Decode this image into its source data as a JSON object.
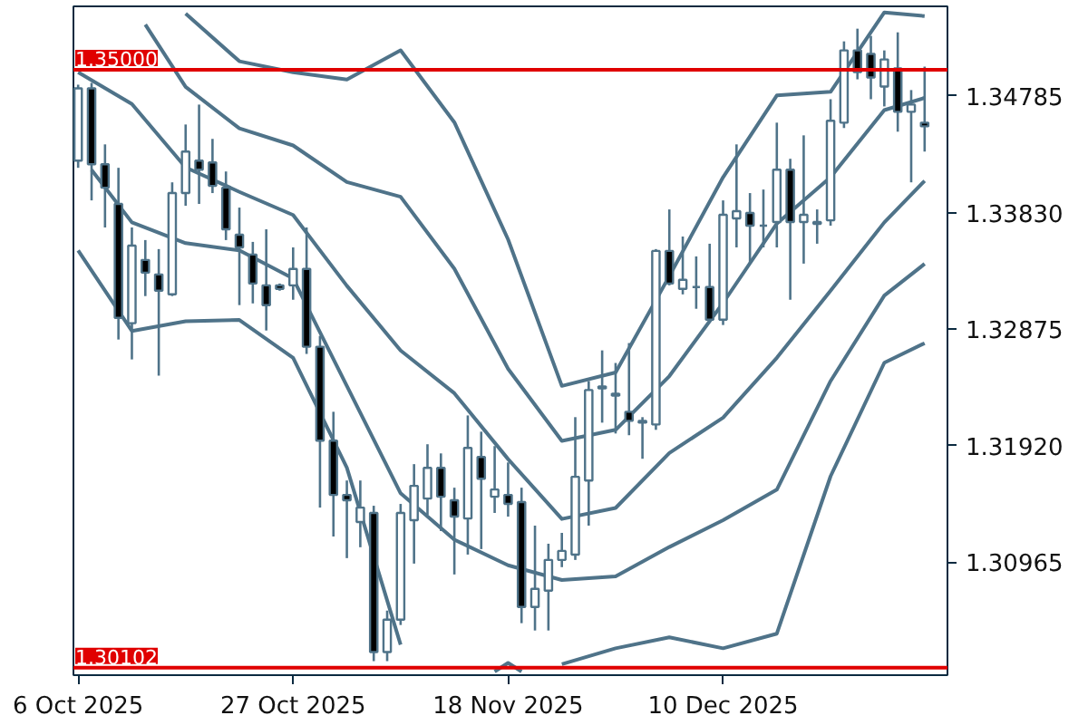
{
  "chart_data": {
    "type": "candlestick",
    "categories": [
      "6 Oct 2025",
      null,
      null,
      null,
      null,
      null,
      null,
      null,
      null,
      null,
      null,
      null,
      null,
      null,
      null,
      null,
      "27 Oct 2025",
      null,
      null,
      null,
      null,
      null,
      null,
      null,
      null,
      null,
      null,
      null,
      null,
      null,
      null,
      null,
      "18 Nov 2025",
      null,
      null,
      null,
      null,
      null,
      null,
      null,
      null,
      null,
      null,
      null,
      null,
      null,
      null,
      null,
      "10 Dec 2025",
      null,
      null,
      null,
      null,
      null,
      null,
      null,
      null,
      null,
      null,
      null,
      null,
      null,
      null,
      null
    ],
    "color": "#4f7389",
    "ohlc": [
      [
        1.34256,
        1.34878,
        1.34197,
        1.34848
      ],
      [
        1.34848,
        1.34893,
        1.3393,
        1.34226
      ],
      [
        1.34226,
        1.34389,
        1.33708,
        1.34034
      ],
      [
        1.33901,
        1.34197,
        1.3279,
        1.32968
      ],
      [
        1.32924,
        1.33708,
        1.32627,
        1.3356
      ],
      [
        1.33442,
        1.33605,
        1.33146,
        1.33338
      ],
      [
        1.33323,
        1.33531,
        1.32494,
        1.3319
      ],
      [
        1.3316,
        1.34078,
        1.33146,
        1.3399
      ],
      [
        1.3399,
        1.34552,
        1.33886,
        1.3433
      ],
      [
        1.34256,
        1.34715,
        1.33901,
        1.34182
      ],
      [
        1.34241,
        1.34434,
        1.3399,
        1.34049
      ],
      [
        1.34034,
        1.34167,
        1.33605,
        1.33693
      ],
      [
        1.33649,
        1.33871,
        1.33072,
        1.33545
      ],
      [
        1.33486,
        1.3359,
        1.33086,
        1.33249
      ],
      [
        1.33234,
        1.33693,
        1.32864,
        1.33072
      ],
      [
        1.33234,
        1.33249,
        1.3319,
        1.33205
      ],
      [
        1.33234,
        1.33545,
        1.33116,
        1.33368
      ],
      [
        1.33368,
        1.33708,
        1.32672,
        1.32731
      ],
      [
        1.32731,
        1.3282,
        1.31413,
        1.31961
      ],
      [
        1.31961,
        1.32198,
        1.31176,
        1.31517
      ],
      [
        1.31517,
        1.31635,
        1.30999,
        1.31473
      ],
      [
        1.31295,
        1.31635,
        1.31088,
        1.31413
      ],
      [
        1.31369,
        1.31428,
        1.30155,
        1.30229
      ],
      [
        1.30229,
        1.30569,
        1.30155,
        1.30495
      ],
      [
        1.30495,
        1.31443,
        1.30451,
        1.31369
      ],
      [
        1.3131,
        1.31769,
        1.30954,
        1.31591
      ],
      [
        1.31487,
        1.31932,
        1.31354,
        1.31739
      ],
      [
        1.31739,
        1.31857,
        1.31221,
        1.31502
      ],
      [
        1.31473,
        1.31576,
        1.30865,
        1.31339
      ],
      [
        1.31324,
        1.32168,
        1.31028,
        1.31902
      ],
      [
        1.31828,
        1.32035,
        1.31073,
        1.3165
      ],
      [
        1.31502,
        1.31917,
        1.31369,
        1.31561
      ],
      [
        1.31517,
        1.31783,
        1.31339,
        1.31443
      ],
      [
        1.31458,
        1.31576,
        1.30466,
        1.30599
      ],
      [
        1.30599,
        1.31265,
        1.30406,
        1.30747
      ],
      [
        1.30732,
        1.31117,
        1.30406,
        1.30984
      ],
      [
        1.30984,
        1.31206,
        1.30925,
        1.31058
      ],
      [
        1.31028,
        1.32154,
        1.30984,
        1.31665
      ],
      [
        1.31635,
        1.3245,
        1.31265,
        1.32376
      ],
      [
        1.3239,
        1.32701,
        1.32109,
        1.32405
      ],
      [
        1.32346,
        1.32598,
        1.3202,
        1.32331
      ],
      [
        1.32198,
        1.32761,
        1.32006,
        1.32124
      ],
      [
        1.32109,
        1.32154,
        1.31813,
        1.32124
      ],
      [
        1.32094,
        1.33531,
        1.3205,
        1.33516
      ],
      [
        1.33516,
        1.33856,
        1.33234,
        1.33249
      ],
      [
        1.33205,
        1.33634,
        1.3316,
        1.33279
      ],
      [
        1.3322,
        1.33471,
        1.33042,
        1.3322
      ],
      [
        1.3322,
        1.33575,
        1.32938,
        1.32953
      ],
      [
        1.32953,
        1.3393,
        1.32909,
        1.33812
      ],
      [
        1.33782,
        1.34389,
        1.33545,
        1.33842
      ],
      [
        1.33827,
        1.3399,
        1.33412,
        1.33723
      ],
      [
        1.33723,
        1.34019,
        1.33545,
        1.33723
      ],
      [
        1.33753,
        1.34567,
        1.33545,
        1.34182
      ],
      [
        1.34182,
        1.34271,
        1.33116,
        1.33753
      ],
      [
        1.33753,
        1.34463,
        1.33412,
        1.33812
      ],
      [
        1.33738,
        1.33856,
        1.33575,
        1.33753
      ],
      [
        1.33767,
        1.34759,
        1.33723,
        1.34582
      ],
      [
        1.34567,
        1.35233,
        1.34523,
        1.35159
      ],
      [
        1.35159,
        1.35337,
        1.34922,
        1.34982
      ],
      [
        1.3513,
        1.35278,
        1.34759,
        1.34937
      ],
      [
        1.34863,
        1.35159,
        1.347,
        1.35085
      ],
      [
        1.35011,
        1.35307,
        1.34493,
        1.34656
      ],
      [
        1.34656,
        1.34834,
        1.34078,
        1.34715
      ],
      [
        1.34567,
        1.35026,
        1.3433,
        1.34537
      ]
    ],
    "series": [
      {
        "type": "line",
        "color": "#4f7389",
        "values": [
          null,
          null,
          null,
          null,
          null,
          null,
          null,
          null,
          1.3546,
          null,
          null,
          null,
          1.3507,
          null,
          null,
          null,
          1.3498,
          null,
          null,
          null,
          1.3492,
          null,
          null,
          null,
          1.3516,
          null,
          null,
          null,
          1.3457,
          null,
          null,
          null,
          1.3361,
          null,
          null,
          null,
          1.3241,
          null,
          null,
          null,
          1.3252,
          null,
          null,
          null,
          1.3331,
          null,
          null,
          null,
          1.3412,
          null,
          null,
          null,
          1.3479,
          null,
          null,
          null,
          1.3482,
          null,
          null,
          null,
          1.3547,
          null,
          null,
          1.3544
        ]
      },
      {
        "type": "line",
        "color": "#4f7389",
        "values": [
          null,
          null,
          null,
          null,
          null,
          1.3537,
          null,
          null,
          1.3486,
          null,
          null,
          null,
          1.3452,
          null,
          null,
          null,
          1.3438,
          null,
          null,
          null,
          1.3408,
          null,
          null,
          null,
          1.3396,
          null,
          null,
          null,
          1.3337,
          null,
          null,
          null,
          1.3255,
          null,
          null,
          null,
          1.3196,
          null,
          null,
          null,
          1.3205,
          null,
          null,
          null,
          1.3249,
          null,
          null,
          null,
          1.3309,
          null,
          null,
          null,
          1.3374,
          null,
          null,
          null,
          1.3412,
          null,
          null,
          null,
          1.3467,
          null,
          null,
          1.3477
        ]
      },
      {
        "type": "line",
        "color": "#4f7389",
        "values": [
          1.3498,
          null,
          null,
          null,
          1.3472,
          null,
          null,
          null,
          1.342,
          null,
          null,
          null,
          1.34,
          null,
          null,
          null,
          1.3381,
          null,
          null,
          null,
          1.3323,
          null,
          null,
          null,
          1.327,
          null,
          null,
          null,
          1.3235,
          null,
          null,
          null,
          1.3181,
          null,
          null,
          null,
          1.3132,
          null,
          null,
          null,
          1.3141,
          null,
          null,
          null,
          1.3186,
          null,
          null,
          null,
          1.3215,
          null,
          null,
          null,
          1.3264,
          null,
          null,
          null,
          1.3319,
          null,
          null,
          null,
          1.3375,
          null,
          null,
          1.3409
        ]
      },
      {
        "type": "line",
        "color": "#4f7389",
        "values": [
          null,
          1.3418,
          null,
          null,
          1.3375,
          null,
          null,
          null,
          1.3358,
          null,
          null,
          null,
          1.3352,
          null,
          null,
          null,
          1.3329,
          null,
          null,
          null,
          1.3241,
          null,
          null,
          null,
          1.3153,
          null,
          null,
          null,
          1.3115,
          null,
          null,
          null,
          1.3094,
          null,
          null,
          null,
          1.3082,
          null,
          null,
          null,
          1.3085,
          null,
          null,
          null,
          1.3109,
          null,
          null,
          null,
          1.3131,
          null,
          null,
          null,
          1.3156,
          null,
          null,
          null,
          1.3245,
          null,
          null,
          null,
          1.3315,
          null,
          null,
          1.3341
        ]
      },
      {
        "type": "line",
        "color": "#4f7389",
        "values": [
          1.3352,
          null,
          null,
          null,
          1.3286,
          null,
          null,
          null,
          1.3294,
          null,
          null,
          null,
          1.3295,
          null,
          null,
          null,
          1.3264,
          null,
          null,
          null,
          1.3174,
          null,
          null,
          null,
          1.3029,
          null,
          null,
          null,
          null,
          null,
          null,
          null,
          null,
          null,
          null,
          null,
          null,
          null,
          null,
          null,
          null,
          null,
          null,
          null,
          null,
          null,
          null,
          null,
          null,
          null,
          null,
          null,
          null,
          null,
          null,
          null,
          null,
          null,
          null,
          null,
          null,
          null,
          null,
          null
        ]
      },
      {
        "type": "line",
        "color": "#4f7389",
        "values": [
          null,
          null,
          null,
          null,
          null,
          null,
          null,
          null,
          null,
          null,
          null,
          null,
          null,
          null,
          null,
          null,
          null,
          null,
          null,
          null,
          null,
          null,
          null,
          null,
          null,
          null,
          null,
          null,
          null,
          null,
          null,
          1.3007,
          1.3014,
          1.3007,
          null,
          null,
          null,
          null,
          null,
          null,
          null,
          null,
          null,
          null,
          null,
          null,
          null,
          null,
          null,
          null,
          null,
          null,
          null,
          null,
          null,
          null,
          null,
          null,
          null,
          null,
          null,
          null,
          null,
          null
        ]
      },
      {
        "type": "line",
        "color": "#4f7389",
        "values": [
          null,
          null,
          null,
          null,
          null,
          null,
          null,
          null,
          null,
          null,
          null,
          null,
          null,
          null,
          null,
          null,
          null,
          null,
          null,
          null,
          null,
          null,
          null,
          null,
          null,
          null,
          null,
          null,
          null,
          null,
          null,
          null,
          null,
          null,
          null,
          null,
          1.3013,
          null,
          null,
          null,
          1.3026,
          null,
          null,
          null,
          1.3035,
          null,
          null,
          null,
          1.3026,
          null,
          null,
          null,
          1.3038,
          null,
          null,
          null,
          1.3167,
          null,
          null,
          null,
          1.326,
          null,
          null,
          1.3276
        ]
      }
    ],
    "ylim": [
      1.3004,
      1.3552
    ],
    "yticks": [
      {
        "value": 1.30965,
        "label": "1.30965"
      },
      {
        "value": 1.3192,
        "label": "1.31920"
      },
      {
        "value": 1.32875,
        "label": "1.32875"
      },
      {
        "value": 1.3383,
        "label": "1.33830"
      },
      {
        "value": 1.34785,
        "label": "1.34785"
      }
    ],
    "ref_lines": [
      {
        "axis": "y",
        "value": 1.35,
        "label": "1.35000",
        "color": "#e00000"
      },
      {
        "axis": "y",
        "value": 1.30102,
        "label": "1.30102",
        "color": "#e00000"
      }
    ],
    "grid": false
  }
}
